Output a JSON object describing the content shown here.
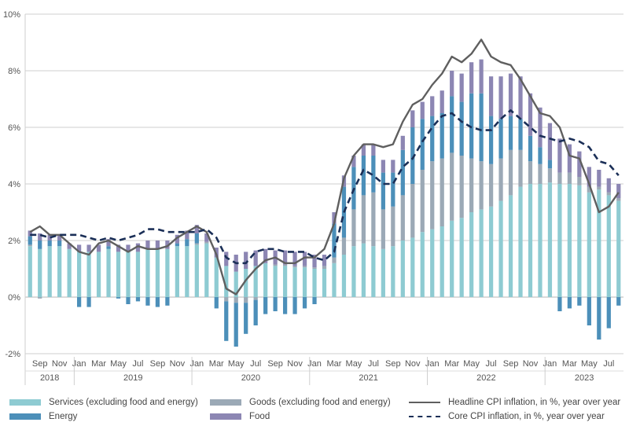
{
  "chart_data": {
    "type": "bar",
    "subtype": "stacked bar with line overlays",
    "y_unit": "%",
    "ylim": [
      -2,
      10
    ],
    "y_ticks": [
      "-2%",
      "0%",
      "2%",
      "4%",
      "6%",
      "8%",
      "10%"
    ],
    "y_tick_values": [
      -2,
      0,
      2,
      4,
      6,
      8,
      10
    ],
    "grid": true,
    "legend_position": "bottom",
    "periods": [
      "Aug 2018",
      "Sep 2018",
      "Oct 2018",
      "Nov 2018",
      "Dec 2018",
      "Jan 2019",
      "Feb 2019",
      "Mar 2019",
      "Apr 2019",
      "May 2019",
      "Jun 2019",
      "Jul 2019",
      "Aug 2019",
      "Sep 2019",
      "Oct 2019",
      "Nov 2019",
      "Dec 2019",
      "Jan 2020",
      "Feb 2020",
      "Mar 2020",
      "Apr 2020",
      "May 2020",
      "Jun 2020",
      "Jul 2020",
      "Aug 2020",
      "Sep 2020",
      "Oct 2020",
      "Nov 2020",
      "Dec 2020",
      "Jan 2021",
      "Feb 2021",
      "Mar 2021",
      "Apr 2021",
      "May 2021",
      "Jun 2021",
      "Jul 2021",
      "Aug 2021",
      "Sep 2021",
      "Oct 2021",
      "Nov 2021",
      "Dec 2021",
      "Jan 2022",
      "Feb 2022",
      "Mar 2022",
      "Apr 2022",
      "May 2022",
      "Jun 2022",
      "Jul 2022",
      "Aug 2022",
      "Sep 2022",
      "Oct 2022",
      "Nov 2022",
      "Dec 2022",
      "Jan 2023",
      "Feb 2023",
      "Mar 2023",
      "Apr 2023",
      "May 2023",
      "Jun 2023",
      "Jul 2023",
      "Aug 2023"
    ],
    "month_ticks": [
      {
        "label": "Sep",
        "index": 1
      },
      {
        "label": "Nov",
        "index": 3
      },
      {
        "label": "Jan",
        "index": 5
      },
      {
        "label": "Mar",
        "index": 7
      },
      {
        "label": "May",
        "index": 9
      },
      {
        "label": "Jul",
        "index": 11
      },
      {
        "label": "Sep",
        "index": 13
      },
      {
        "label": "Nov",
        "index": 15
      },
      {
        "label": "Jan",
        "index": 17
      },
      {
        "label": "Mar",
        "index": 19
      },
      {
        "label": "May",
        "index": 21
      },
      {
        "label": "Jul",
        "index": 23
      },
      {
        "label": "Sep",
        "index": 25
      },
      {
        "label": "Nov",
        "index": 27
      },
      {
        "label": "Jan",
        "index": 29
      },
      {
        "label": "Mar",
        "index": 31
      },
      {
        "label": "May",
        "index": 33
      },
      {
        "label": "Jul",
        "index": 35
      },
      {
        "label": "Sep",
        "index": 37
      },
      {
        "label": "Nov",
        "index": 39
      },
      {
        "label": "Jan",
        "index": 41
      },
      {
        "label": "Mar",
        "index": 43
      },
      {
        "label": "May",
        "index": 45
      },
      {
        "label": "Jul",
        "index": 47
      },
      {
        "label": "Sep",
        "index": 49
      },
      {
        "label": "Nov",
        "index": 51
      },
      {
        "label": "Jan",
        "index": 53
      },
      {
        "label": "Mar",
        "index": 55
      },
      {
        "label": "May",
        "index": 57
      },
      {
        "label": "Jul",
        "index": 59
      }
    ],
    "years": [
      {
        "label": "2018",
        "start": 0,
        "end": 4
      },
      {
        "label": "2019",
        "start": 5,
        "end": 16
      },
      {
        "label": "2020",
        "start": 17,
        "end": 28
      },
      {
        "label": "2021",
        "start": 29,
        "end": 40
      },
      {
        "label": "2022",
        "start": 41,
        "end": 52
      },
      {
        "label": "2023",
        "start": 53,
        "end": 60
      }
    ],
    "series": [
      {
        "name": "Services (excluding food and energy)",
        "kind": "bar",
        "color": "#8ecbd2",
        "values": [
          1.8,
          1.7,
          1.8,
          1.8,
          1.7,
          1.6,
          1.6,
          1.6,
          1.7,
          1.6,
          1.6,
          1.6,
          1.7,
          1.7,
          1.7,
          1.8,
          1.8,
          1.85,
          1.9,
          1.4,
          1.1,
          0.9,
          1.0,
          1.1,
          1.2,
          1.1,
          1.1,
          1.05,
          1.05,
          1.0,
          1.0,
          1.2,
          1.5,
          1.8,
          1.9,
          1.8,
          1.7,
          1.8,
          2.0,
          2.1,
          2.3,
          2.4,
          2.5,
          2.7,
          2.8,
          3.0,
          3.1,
          3.2,
          3.4,
          3.6,
          3.9,
          4.0,
          4.0,
          4.05,
          4.0,
          4.0,
          3.95,
          3.7,
          3.8,
          3.6,
          3.4
        ]
      },
      {
        "name": "Goods (excluding food and energy)",
        "kind": "bar",
        "color": "#9ba9b6",
        "values": [
          0.05,
          -0.05,
          0.0,
          0.0,
          0.0,
          0.0,
          0.0,
          0.0,
          0.0,
          0.0,
          0.0,
          0.0,
          0.0,
          0.0,
          0.0,
          0.0,
          0.0,
          0.05,
          0.05,
          0.0,
          -0.15,
          -0.2,
          -0.2,
          -0.1,
          0.0,
          0.05,
          0.05,
          0.05,
          0.05,
          0.05,
          0.1,
          0.2,
          0.6,
          1.3,
          1.7,
          1.9,
          1.4,
          1.4,
          1.6,
          1.9,
          2.2,
          2.4,
          2.4,
          2.4,
          2.2,
          1.9,
          1.7,
          1.5,
          1.5,
          1.6,
          1.3,
          0.8,
          0.7,
          0.5,
          0.4,
          0.4,
          0.3,
          0.2,
          0.1,
          0.1,
          0.1
        ]
      },
      {
        "name": "Energy",
        "kind": "bar",
        "color": "#4c8fb9",
        "values": [
          0.3,
          0.3,
          0.2,
          0.2,
          0.0,
          -0.35,
          -0.35,
          0.0,
          0.1,
          -0.05,
          -0.25,
          -0.15,
          -0.3,
          -0.35,
          -0.3,
          0.1,
          0.25,
          0.35,
          0.0,
          -0.4,
          -1.4,
          -1.55,
          -1.1,
          -0.9,
          -0.6,
          -0.5,
          -0.6,
          -0.6,
          -0.4,
          -0.25,
          0.0,
          1.2,
          1.8,
          1.5,
          1.4,
          1.3,
          1.3,
          1.2,
          1.6,
          2.0,
          1.8,
          1.6,
          1.6,
          2.0,
          1.9,
          2.3,
          2.4,
          1.7,
          1.4,
          1.2,
          1.1,
          0.9,
          0.6,
          0.3,
          -0.5,
          -0.4,
          -0.3,
          -1.0,
          -1.5,
          -1.1,
          -0.3
        ]
      },
      {
        "name": "Food",
        "kind": "bar",
        "color": "#8c86b3",
        "values": [
          0.2,
          0.25,
          0.2,
          0.2,
          0.2,
          0.25,
          0.25,
          0.25,
          0.25,
          0.25,
          0.25,
          0.3,
          0.3,
          0.3,
          0.3,
          0.3,
          0.3,
          0.3,
          0.3,
          0.35,
          0.5,
          0.6,
          0.6,
          0.55,
          0.5,
          0.5,
          0.5,
          0.5,
          0.5,
          0.45,
          0.4,
          0.4,
          0.4,
          0.4,
          0.4,
          0.4,
          0.45,
          0.45,
          0.5,
          0.6,
          0.6,
          0.7,
          0.8,
          0.9,
          1.0,
          1.1,
          1.2,
          1.4,
          1.5,
          1.5,
          1.5,
          1.5,
          1.4,
          1.3,
          1.2,
          1.0,
          0.9,
          0.7,
          0.6,
          0.5,
          0.5
        ]
      },
      {
        "name": "Headline CPI inflation, in %, year over year",
        "kind": "line",
        "color": "#5f5f5f",
        "dash": "solid",
        "values": [
          2.3,
          2.5,
          2.2,
          2.2,
          1.9,
          1.6,
          1.5,
          1.9,
          2.0,
          1.8,
          1.6,
          1.8,
          1.7,
          1.7,
          1.8,
          2.1,
          2.3,
          2.5,
          2.3,
          1.5,
          0.3,
          0.1,
          0.6,
          1.0,
          1.3,
          1.4,
          1.2,
          1.2,
          1.4,
          1.4,
          1.7,
          2.6,
          4.2,
          5.0,
          5.4,
          5.4,
          5.3,
          5.4,
          6.2,
          6.8,
          7.0,
          7.5,
          7.9,
          8.5,
          8.3,
          8.6,
          9.1,
          8.5,
          8.3,
          8.2,
          7.7,
          7.1,
          6.5,
          6.4,
          6.0,
          5.0,
          4.9,
          4.0,
          3.0,
          3.2,
          3.7
        ]
      },
      {
        "name": "Core CPI inflation, in %, year over year",
        "kind": "line",
        "color": "#1b2f57",
        "dash": "dashed",
        "values": [
          2.2,
          2.2,
          2.1,
          2.2,
          2.2,
          2.2,
          2.1,
          2.0,
          2.1,
          2.0,
          2.1,
          2.2,
          2.4,
          2.4,
          2.3,
          2.3,
          2.3,
          2.3,
          2.4,
          2.1,
          1.4,
          1.2,
          1.2,
          1.6,
          1.7,
          1.7,
          1.6,
          1.6,
          1.6,
          1.4,
          1.3,
          1.6,
          3.0,
          3.8,
          4.5,
          4.3,
          4.0,
          4.0,
          4.6,
          4.9,
          5.5,
          6.0,
          6.4,
          6.5,
          6.2,
          6.0,
          5.9,
          5.9,
          6.3,
          6.6,
          6.3,
          6.0,
          5.7,
          5.6,
          5.5,
          5.6,
          5.5,
          5.3,
          4.8,
          4.7,
          4.3
        ]
      }
    ]
  },
  "legend": {
    "items": [
      {
        "label": "Services (excluding food and energy)",
        "type": "swatch",
        "color": "#8ecbd2"
      },
      {
        "label": "Goods (excluding food and energy)",
        "type": "swatch",
        "color": "#9ba9b6"
      },
      {
        "label": "Headline CPI inflation, in %, year over year",
        "type": "solid-line",
        "color": "#5f5f5f"
      },
      {
        "label": "Energy",
        "type": "swatch",
        "color": "#4c8fb9"
      },
      {
        "label": "Food",
        "type": "swatch",
        "color": "#8c86b3"
      },
      {
        "label": "Core CPI inflation, in %, year over year",
        "type": "dashed-line",
        "color": "#1b2f57"
      }
    ]
  }
}
